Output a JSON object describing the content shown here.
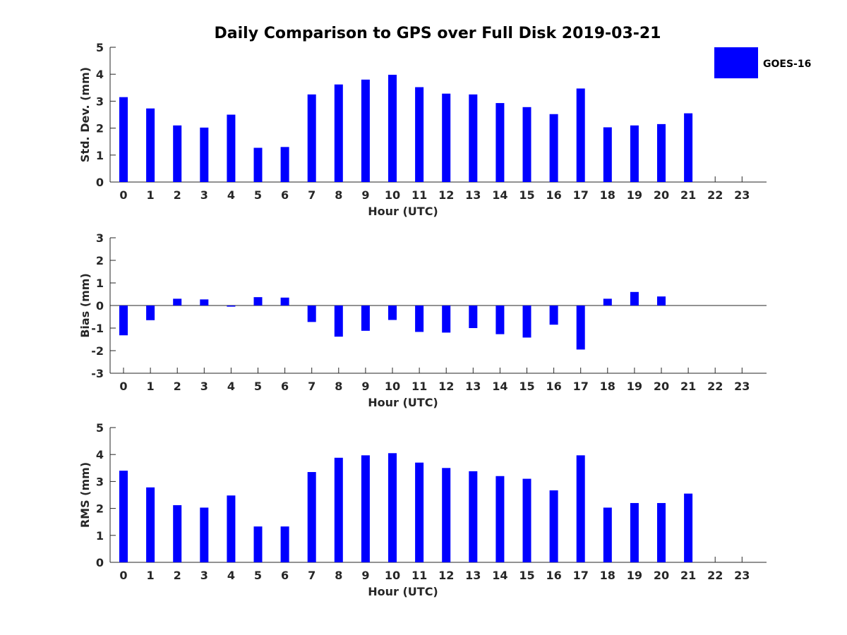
{
  "title": "Daily Comparison to GPS over Full Disk 2019-03-21",
  "legend": {
    "label": "GOES-16",
    "color": "#0000ff"
  },
  "chart_data": [
    {
      "type": "bar",
      "categories": [
        "0",
        "1",
        "2",
        "3",
        "4",
        "5",
        "6",
        "7",
        "8",
        "9",
        "10",
        "11",
        "12",
        "13",
        "14",
        "15",
        "16",
        "17",
        "18",
        "19",
        "20",
        "21",
        "22",
        "23"
      ],
      "series": [
        {
          "name": "GOES-16",
          "values": [
            3.15,
            2.73,
            2.1,
            2.02,
            2.5,
            1.27,
            1.3,
            3.25,
            3.62,
            3.8,
            3.98,
            3.52,
            3.28,
            3.25,
            2.93,
            2.78,
            2.52,
            3.47,
            2.03,
            2.1,
            2.15,
            2.55,
            null,
            null
          ]
        }
      ],
      "xlabel": "Hour (UTC)",
      "ylabel": "Std. Dev. (mm)",
      "ylim": [
        0,
        5
      ],
      "yticks": [
        "0",
        "1",
        "2",
        "3",
        "4",
        "5"
      ]
    },
    {
      "type": "bar",
      "categories": [
        "0",
        "1",
        "2",
        "3",
        "4",
        "5",
        "6",
        "7",
        "8",
        "9",
        "10",
        "11",
        "12",
        "13",
        "14",
        "15",
        "16",
        "17",
        "18",
        "19",
        "20",
        "21",
        "22",
        "23"
      ],
      "series": [
        {
          "name": "GOES-16",
          "values": [
            -1.32,
            -0.65,
            0.3,
            0.27,
            -0.05,
            0.37,
            0.35,
            -0.73,
            -1.38,
            -1.12,
            -0.64,
            -1.17,
            -1.2,
            -1.0,
            -1.27,
            -1.42,
            -0.85,
            -1.95,
            0.3,
            0.6,
            0.4,
            null,
            null,
            null
          ]
        }
      ],
      "xlabel": "Hour (UTC)",
      "ylabel": "Bias (mm)",
      "ylim": [
        -3,
        3
      ],
      "yticks": [
        "-3",
        "-2",
        "-1",
        "0",
        "1",
        "2",
        "3"
      ]
    },
    {
      "type": "bar",
      "categories": [
        "0",
        "1",
        "2",
        "3",
        "4",
        "5",
        "6",
        "7",
        "8",
        "9",
        "10",
        "11",
        "12",
        "13",
        "14",
        "15",
        "16",
        "17",
        "18",
        "19",
        "20",
        "21",
        "22",
        "23"
      ],
      "series": [
        {
          "name": "GOES-16",
          "values": [
            3.4,
            2.78,
            2.12,
            2.03,
            2.48,
            1.33,
            1.33,
            3.35,
            3.88,
            3.97,
            4.05,
            3.7,
            3.5,
            3.38,
            3.2,
            3.1,
            2.67,
            3.97,
            2.03,
            2.2,
            2.2,
            2.55,
            null,
            null
          ]
        }
      ],
      "xlabel": "Hour (UTC)",
      "ylabel": "RMS (mm)",
      "ylim": [
        0,
        5
      ],
      "yticks": [
        "0",
        "1",
        "2",
        "3",
        "4",
        "5"
      ]
    }
  ]
}
